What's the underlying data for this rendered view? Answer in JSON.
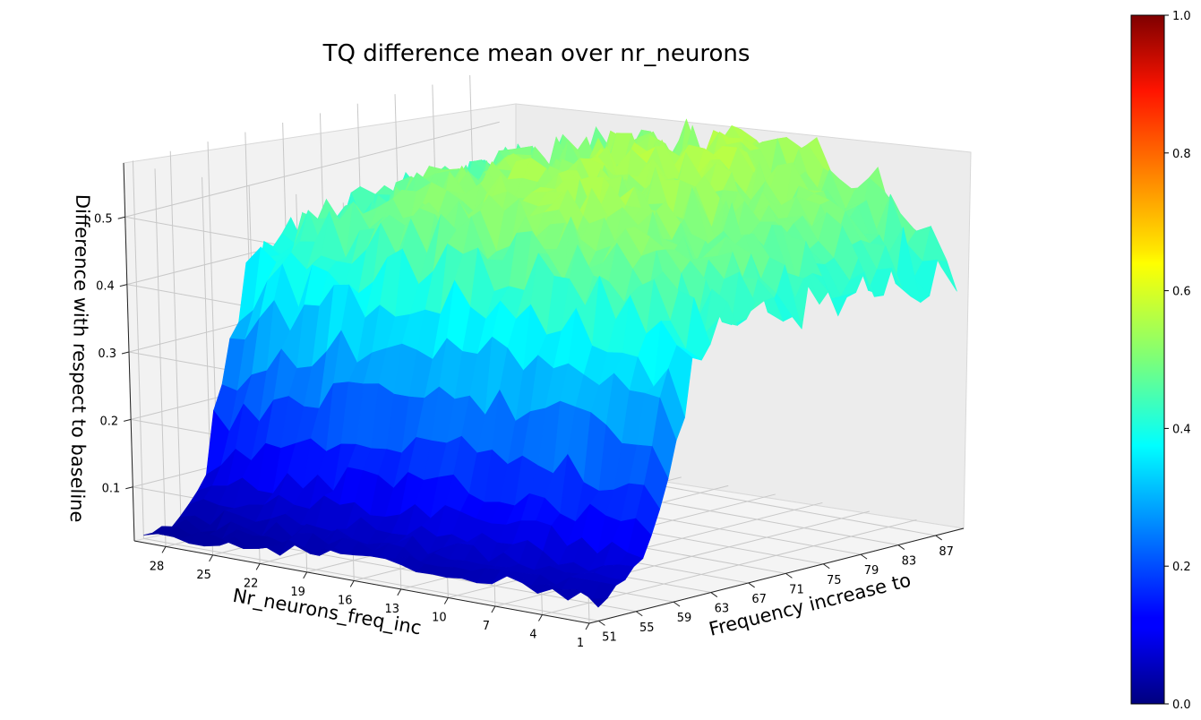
{
  "chart_data": {
    "type": "surface3d",
    "title": "TQ difference mean over nr_neurons",
    "xlabel": "Frequency increase to",
    "ylabel": "Nr_neurons_freq_inc",
    "zlabel": "Difference with respect to baseline",
    "x_ticks": [
      "51",
      "55",
      "59",
      "63",
      "67",
      "71",
      "75",
      "79",
      "83",
      "87"
    ],
    "y_ticks": [
      "28",
      "25",
      "22",
      "19",
      "16",
      "13",
      "10",
      "7",
      "4",
      "1"
    ],
    "z_ticks": [
      "0.1",
      "0.2",
      "0.3",
      "0.4",
      "0.5"
    ],
    "colorbar_ticks": [
      "0.0",
      "0.2",
      "0.4",
      "0.6",
      "0.8",
      "1.0"
    ],
    "colormap": "jet",
    "colorbar_range": [
      0,
      1
    ],
    "x_range": [
      50,
      90
    ],
    "y_range": [
      1,
      30
    ],
    "z_range": [
      0.02,
      0.58
    ],
    "grid": true
  }
}
